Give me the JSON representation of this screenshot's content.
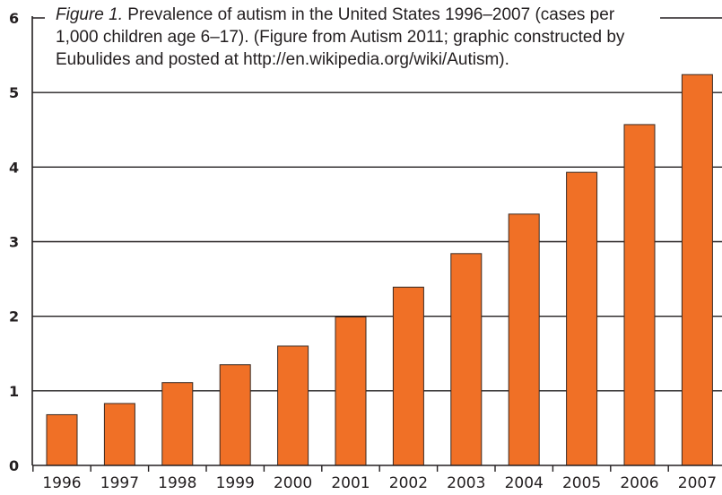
{
  "caption": {
    "lead": "Figure 1.",
    "text": "Prevalence of autism in the United States 1996–2007 (cases per 1,000 children age 6–17). (Figure from Autism 2011; graphic constructed by Eubulides and posted at http://en.wikipedia.org/wiki/Autism)."
  },
  "chart_data": {
    "type": "bar",
    "categories": [
      "1996",
      "1997",
      "1998",
      "1999",
      "2000",
      "2001",
      "2002",
      "2003",
      "2004",
      "2005",
      "2006",
      "2007"
    ],
    "values": [
      0.68,
      0.83,
      1.11,
      1.35,
      1.6,
      1.99,
      2.39,
      2.84,
      3.37,
      3.93,
      4.57,
      5.24
    ],
    "ylim": [
      0,
      6
    ],
    "yticks": [
      "0",
      "1",
      "2",
      "3",
      "4",
      "5",
      "6"
    ],
    "grid": true,
    "bar_color": "#f07026",
    "bar_edge_color": "#3a2a22"
  }
}
